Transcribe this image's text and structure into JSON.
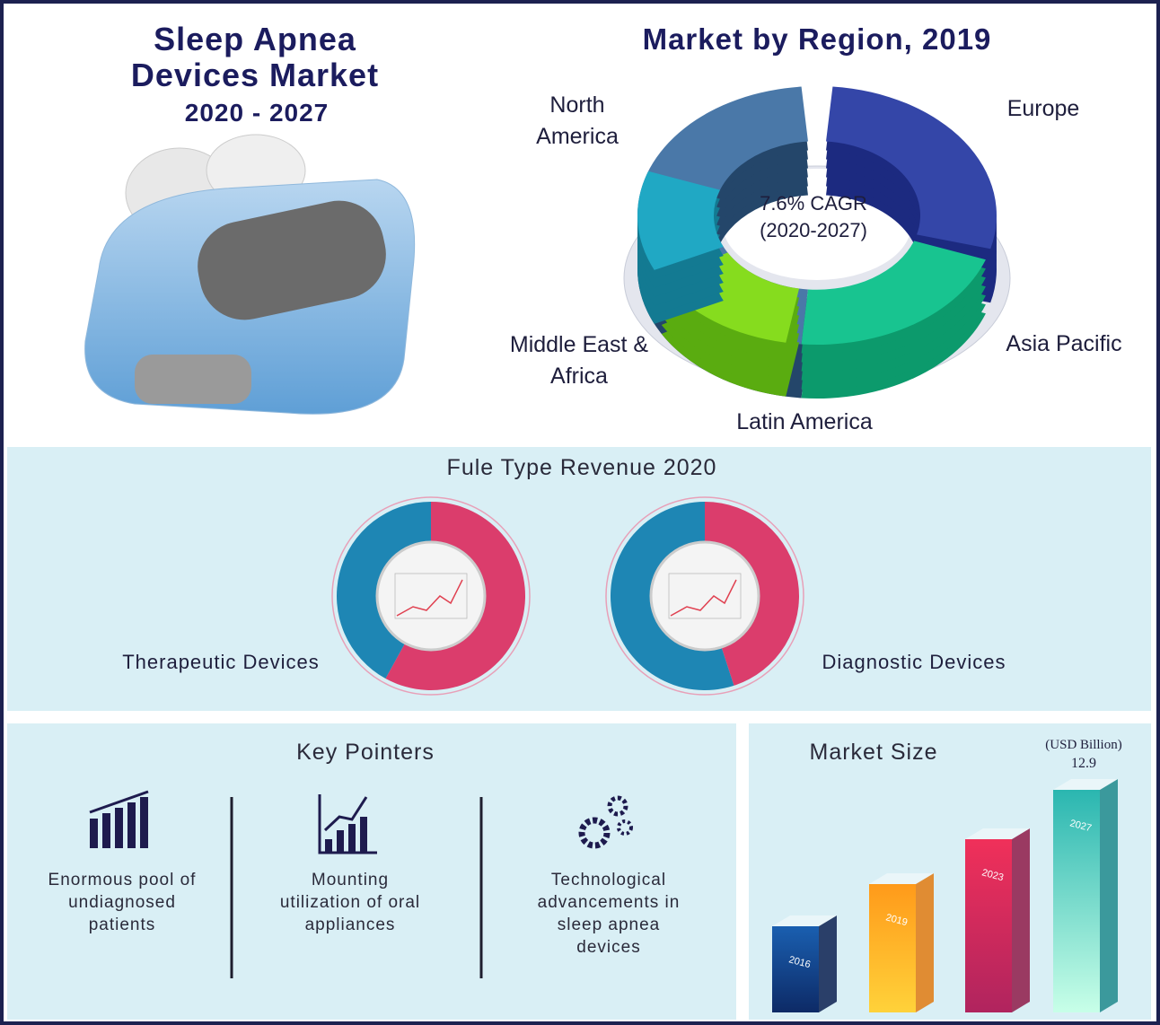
{
  "header": {
    "title": "Sleep Apnea Devices Market",
    "years": "2020 - 2027"
  },
  "region": {
    "title": "Market by Region, 2019",
    "labels": [
      "North America",
      "Europe",
      "Asia Pacific",
      "Latin America",
      "Middle East & Africa"
    ],
    "cagr": "7.6% CAGR",
    "cagr_period": "(2020-2027)"
  },
  "revenue": {
    "title": "Fule Type Revenue 2020",
    "segments": [
      "Therapeutic Devices",
      "Diagnostic Devices"
    ]
  },
  "pointers": {
    "title": "Key Pointers",
    "items": [
      "Enormous pool of undiagnosed patients",
      "Mounting utilization of oral appliances",
      "Technological advancements in sleep apnea devices"
    ]
  },
  "market_size": {
    "title": "Market Size",
    "unit": "(USD Billion)",
    "value": "12.9",
    "years": [
      "2016",
      "2019",
      "2023",
      "2027"
    ]
  }
}
